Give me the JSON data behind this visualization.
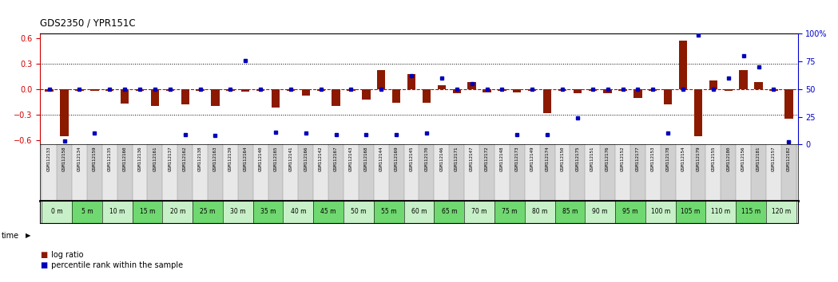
{
  "title": "GDS2350 / YPR151C",
  "gsm_labels": [
    "GSM112133",
    "GSM112158",
    "GSM112134",
    "GSM112159",
    "GSM112135",
    "GSM112160",
    "GSM112136",
    "GSM112161",
    "GSM112137",
    "GSM112162",
    "GSM112138",
    "GSM112163",
    "GSM112139",
    "GSM112164",
    "GSM112140",
    "GSM112165",
    "GSM112141",
    "GSM112166",
    "GSM112142",
    "GSM112167",
    "GSM112143",
    "GSM112168",
    "GSM112144",
    "GSM112169",
    "GSM112145",
    "GSM112170",
    "GSM112146",
    "GSM112171",
    "GSM112147",
    "GSM112172",
    "GSM112148",
    "GSM112173",
    "GSM112149",
    "GSM112174",
    "GSM112150",
    "GSM112175",
    "GSM112151",
    "GSM112176",
    "GSM112152",
    "GSM112177",
    "GSM112153",
    "GSM112178",
    "GSM112154",
    "GSM112179",
    "GSM112155",
    "GSM112180",
    "GSM112156",
    "GSM112181",
    "GSM112157",
    "GSM112182"
  ],
  "time_labels": [
    "0 m",
    "5 m",
    "10 m",
    "15 m",
    "20 m",
    "25 m",
    "30 m",
    "35 m",
    "40 m",
    "45 m",
    "50 m",
    "55 m",
    "60 m",
    "65 m",
    "70 m",
    "75 m",
    "80 m",
    "85 m",
    "90 m",
    "95 m",
    "100 m",
    "105 m",
    "110 m",
    "115 m",
    "120 m"
  ],
  "log_ratio": [
    -0.03,
    -0.55,
    -0.02,
    -0.02,
    -0.02,
    -0.17,
    -0.02,
    -0.2,
    -0.02,
    -0.18,
    -0.02,
    -0.2,
    -0.02,
    -0.03,
    -0.02,
    -0.22,
    -0.02,
    -0.08,
    -0.02,
    -0.2,
    -0.02,
    -0.12,
    0.22,
    -0.16,
    0.18,
    -0.16,
    0.05,
    -0.05,
    0.08,
    -0.04,
    -0.02,
    -0.04,
    -0.02,
    -0.28,
    -0.02,
    -0.05,
    -0.02,
    -0.05,
    -0.02,
    -0.1,
    -0.02,
    -0.18,
    0.57,
    -0.55,
    0.1,
    -0.02,
    0.22,
    0.08,
    -0.02,
    -0.35
  ],
  "percentile_rank": [
    50,
    3,
    50,
    10,
    50,
    50,
    50,
    50,
    50,
    9,
    50,
    8,
    50,
    76,
    50,
    11,
    50,
    10,
    50,
    9,
    50,
    9,
    50,
    9,
    62,
    10,
    60,
    50,
    55,
    50,
    50,
    9,
    50,
    9,
    50,
    24,
    50,
    50,
    50,
    50,
    50,
    10,
    50,
    99,
    50,
    60,
    80,
    70,
    50,
    2
  ],
  "bar_color": "#8B1A00",
  "dot_color": "#0000BB",
  "bg_color": "#ffffff",
  "ylim_left": [
    -0.65,
    0.65
  ],
  "ylim_right": [
    0,
    100
  ],
  "yticks_left": [
    -0.6,
    -0.3,
    0.0,
    0.3,
    0.6
  ],
  "yticks_right": [
    0,
    25,
    50,
    75,
    100
  ],
  "bar_width": 0.55,
  "n": 50,
  "gsm_bg": "#d8d8d8",
  "time_bg_light": "#c8f0c8",
  "time_bg_dark": "#70d870"
}
